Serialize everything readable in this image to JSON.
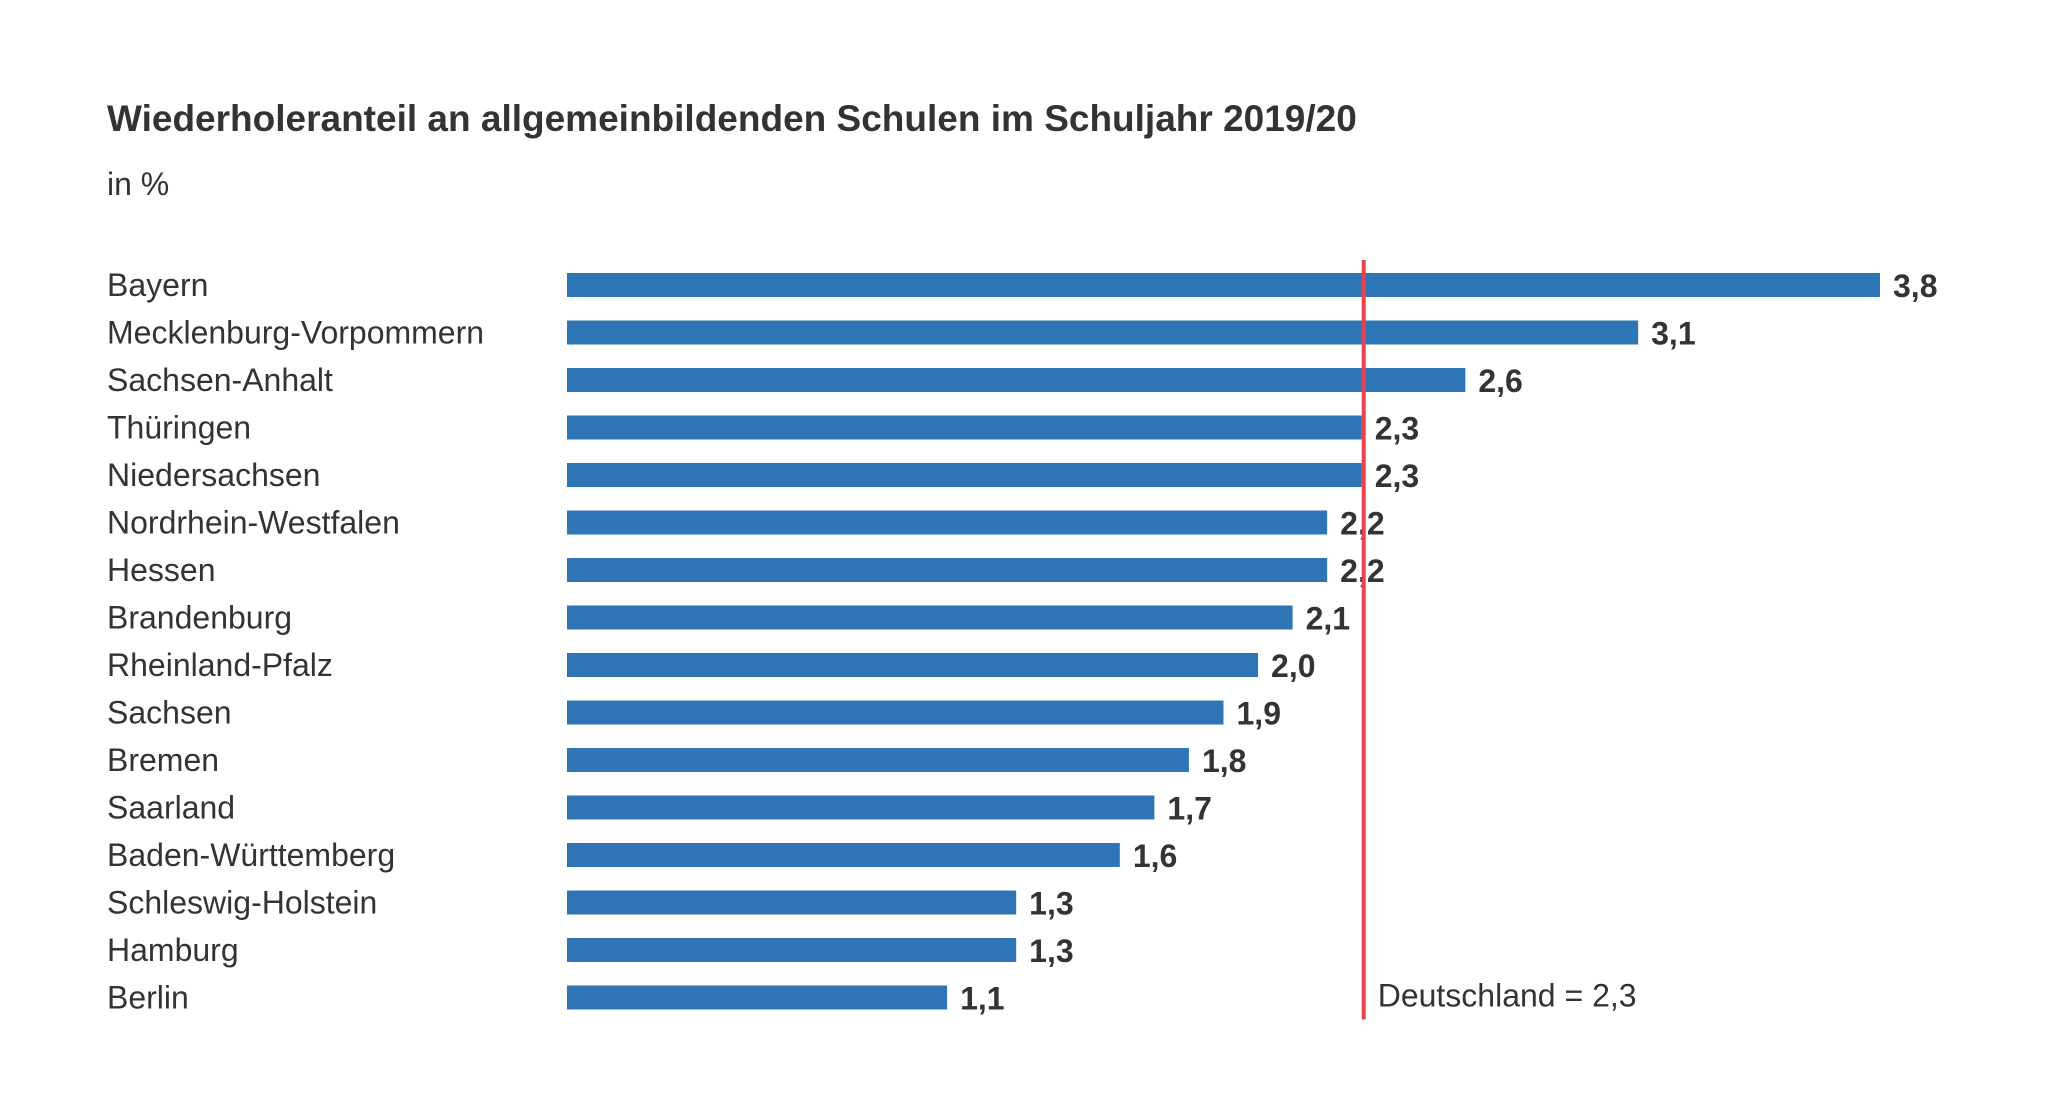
{
  "chart_data": {
    "type": "bar",
    "orientation": "horizontal",
    "title": "Wiederholeranteil an allgemeinbildenden Schulen im Schuljahr 2019/20",
    "subtitle": "in %",
    "categories": [
      "Bayern",
      "Mecklenburg-Vorpommern",
      "Sachsen-Anhalt",
      "Thüringen",
      "Niedersachsen",
      "Nordrhein-Westfalen",
      "Hessen",
      "Brandenburg",
      "Rheinland-Pfalz",
      "Sachsen",
      "Bremen",
      "Saarland",
      "Baden-Württemberg",
      "Schleswig-Holstein",
      "Hamburg",
      "Berlin"
    ],
    "values": [
      3.8,
      3.1,
      2.6,
      2.3,
      2.3,
      2.2,
      2.2,
      2.1,
      2.0,
      1.9,
      1.8,
      1.7,
      1.6,
      1.3,
      1.3,
      1.1
    ],
    "value_labels": [
      "3,8",
      "3,1",
      "2,6",
      "2,3",
      "2,3",
      "2,2",
      "2,2",
      "2,1",
      "2,0",
      "1,9",
      "1,8",
      "1,7",
      "1,6",
      "1,3",
      "1,3",
      "1,1"
    ],
    "xlim": [
      0,
      3.8
    ],
    "reference_line": {
      "value": 2.3,
      "label": "Deutschland = 2,3",
      "color": "#e8414f"
    },
    "bar_color": "#2e75b6",
    "grid": false,
    "legend": "none"
  }
}
